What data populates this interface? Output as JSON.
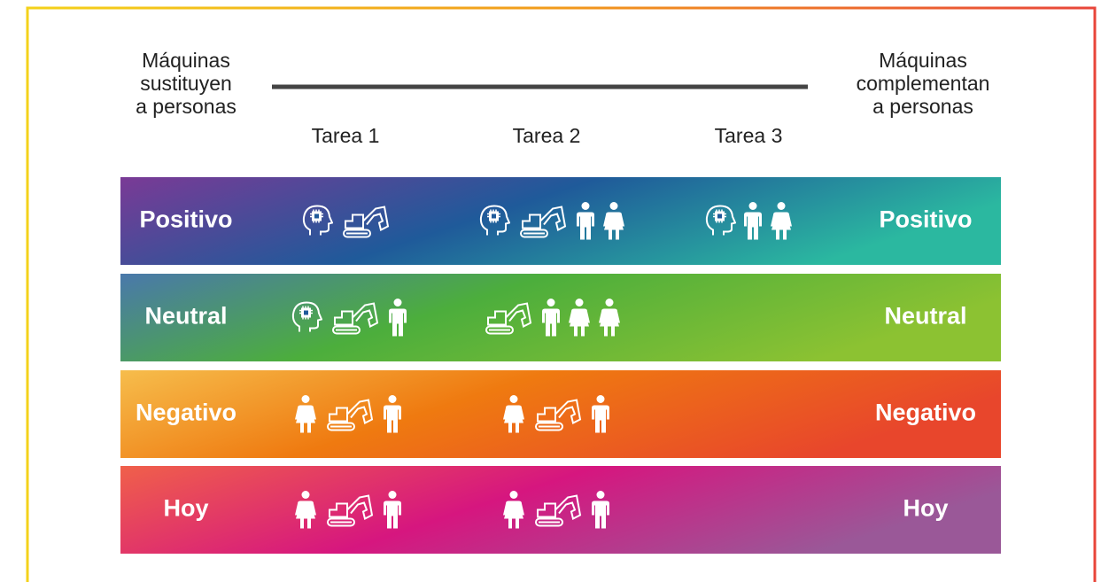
{
  "header": {
    "left_label": [
      "Máquinas",
      "sustituyen",
      "a personas"
    ],
    "right_label": [
      "Máquinas",
      "complementan",
      "a personas"
    ],
    "tasks": [
      "Tarea 1",
      "Tarea 2",
      "Tarea 3"
    ]
  },
  "rows": [
    {
      "label": "Positivo",
      "right_label": "Positivo"
    },
    {
      "label": "Neutral",
      "right_label": "Neutral"
    },
    {
      "label": "Negativo",
      "right_label": "Negativo"
    },
    {
      "label": "Hoy",
      "right_label": "Hoy"
    }
  ]
}
